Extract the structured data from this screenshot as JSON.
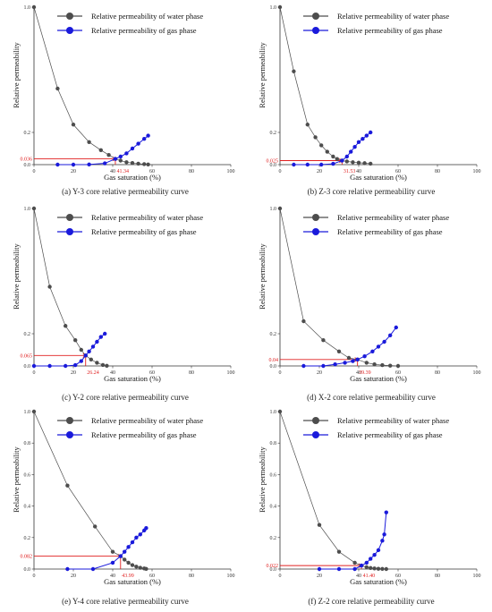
{
  "chart_data": [
    {
      "type": "line",
      "caption": "(a) Y-3 core relative permeability curve",
      "xlabel": "Gas saturation (%)",
      "ylabel": "Relative permeability",
      "xlim": [
        0,
        100
      ],
      "ylim": [
        0,
        1.0
      ],
      "x_ticks": [
        "0",
        "20",
        "40",
        "60",
        "80",
        "100"
      ],
      "y_ticks": [
        "0.0",
        "0.2",
        "1.0"
      ],
      "series": [
        {
          "name": "Relative permeability of water phase",
          "color": "#4d4d4d",
          "x": [
            0,
            12,
            20,
            28,
            34,
            38,
            41.34,
            44,
            47,
            50,
            53,
            56,
            58
          ],
          "y": [
            1.0,
            0.48,
            0.25,
            0.14,
            0.09,
            0.06,
            0.036,
            0.025,
            0.015,
            0.01,
            0.006,
            0.003,
            0.001
          ]
        },
        {
          "name": "Relative permeability of gas phase",
          "color": "#1a1adb",
          "x": [
            12,
            20,
            28,
            36,
            41.34,
            44,
            47,
            50,
            53,
            56,
            58
          ],
          "y": [
            0.0,
            0.0,
            0.001,
            0.008,
            0.036,
            0.05,
            0.07,
            0.1,
            0.13,
            0.16,
            0.18
          ]
        }
      ],
      "crossover": {
        "x": 41.34,
        "y": 0.036,
        "x_label": "41.34",
        "y_label": "0.036"
      },
      "legend": "top-center"
    },
    {
      "type": "line",
      "caption": "(b) Z-3 core relative permeability curve",
      "xlabel": "Gas saturation (%)",
      "ylabel": "Relative permeability",
      "xlim": [
        0,
        100
      ],
      "ylim": [
        0,
        1.0
      ],
      "x_ticks": [
        "0",
        "20",
        "40",
        "60",
        "80",
        "100"
      ],
      "y_ticks": [
        "0.0",
        "0.2",
        "1.0"
      ],
      "series": [
        {
          "name": "Relative permeability of water phase",
          "color": "#4d4d4d",
          "x": [
            0,
            7,
            14,
            18,
            21,
            24,
            27,
            29,
            31.53,
            34,
            37,
            40,
            43,
            46
          ],
          "y": [
            1.0,
            0.59,
            0.25,
            0.17,
            0.12,
            0.08,
            0.05,
            0.035,
            0.025,
            0.02,
            0.015,
            0.012,
            0.009,
            0.006
          ]
        },
        {
          "name": "Relative permeability of gas phase",
          "color": "#1a1adb",
          "x": [
            7,
            14,
            21,
            27,
            31.53,
            34,
            36,
            38,
            40,
            42,
            44,
            46
          ],
          "y": [
            0.0,
            0.0,
            0.0,
            0.005,
            0.025,
            0.05,
            0.08,
            0.11,
            0.14,
            0.16,
            0.18,
            0.2
          ]
        }
      ],
      "crossover": {
        "x": 31.53,
        "y": 0.025,
        "x_label": "31.53",
        "y_label": "0.025"
      },
      "legend": "top-center"
    },
    {
      "type": "line",
      "caption": "(c) Y-2 core relative permeability curve",
      "xlabel": "Gas saturation (%)",
      "ylabel": "Relative permeability",
      "xlim": [
        0,
        100
      ],
      "ylim": [
        0,
        1.0
      ],
      "x_ticks": [
        "0",
        "20",
        "40",
        "60",
        "80",
        "100"
      ],
      "y_ticks": [
        "0.0",
        "0.2",
        "1.0"
      ],
      "series": [
        {
          "name": "Relative permeability of water phase",
          "color": "#4d4d4d",
          "x": [
            0,
            8,
            16,
            21,
            24,
            26.24,
            29,
            32,
            35,
            37
          ],
          "y": [
            1.0,
            0.5,
            0.25,
            0.16,
            0.1,
            0.065,
            0.04,
            0.02,
            0.006,
            0.001
          ]
        },
        {
          "name": "Relative permeability of gas phase",
          "color": "#1a1adb",
          "x": [
            0,
            8,
            16,
            21,
            24,
            26.24,
            28,
            30,
            32,
            34,
            36
          ],
          "y": [
            0.0,
            0.0,
            0.0,
            0.005,
            0.03,
            0.065,
            0.09,
            0.12,
            0.15,
            0.18,
            0.2
          ]
        }
      ],
      "crossover": {
        "x": 26.24,
        "y": 0.065,
        "x_label": "26.24",
        "y_label": "0.065"
      },
      "legend": "top-center"
    },
    {
      "type": "line",
      "caption": "(d) X-2 core relative permeability curve",
      "xlabel": "Gas saturation (%)",
      "ylabel": "Relative permeability",
      "xlim": [
        0,
        100
      ],
      "ylim": [
        0,
        1.0
      ],
      "x_ticks": [
        "0",
        "20",
        "40",
        "60",
        "80",
        "100"
      ],
      "y_ticks": [
        "0.0",
        "0.2",
        "1.0"
      ],
      "series": [
        {
          "name": "Relative permeability of water phase",
          "color": "#4d4d4d",
          "x": [
            0,
            12,
            22,
            30,
            35,
            39.39,
            44,
            48,
            52,
            56,
            60
          ],
          "y": [
            1.0,
            0.28,
            0.16,
            0.09,
            0.05,
            0.04,
            0.02,
            0.01,
            0.005,
            0.002,
            0.0
          ]
        },
        {
          "name": "Relative permeability of gas phase",
          "color": "#1a1adb",
          "x": [
            12,
            22,
            28,
            33,
            37,
            39.39,
            43,
            47,
            50,
            53,
            56,
            59
          ],
          "y": [
            0.0,
            0.0,
            0.01,
            0.02,
            0.03,
            0.04,
            0.06,
            0.09,
            0.12,
            0.15,
            0.19,
            0.24
          ]
        }
      ],
      "crossover": {
        "x": 39.39,
        "y": 0.04,
        "x_label": "39.39",
        "y_label": "0.04"
      },
      "legend": "top-center"
    },
    {
      "type": "line",
      "caption": "(e) Y-4 core relative permeability curve",
      "xlabel": "Gas saturation (%)",
      "ylabel": "Relative permeability",
      "xlim": [
        0,
        100
      ],
      "ylim": [
        0,
        1.0
      ],
      "x_ticks": [
        "0",
        "20",
        "40",
        "60",
        "80",
        "100"
      ],
      "y_ticks": [
        "0.0",
        "0.2",
        "0.4",
        "0.6",
        "0.8",
        "1.0"
      ],
      "series": [
        {
          "name": "Relative permeability of water phase",
          "color": "#4d4d4d",
          "x": [
            0,
            17,
            31,
            40,
            43.99,
            46,
            48,
            50,
            52,
            54,
            56,
            57
          ],
          "y": [
            1.0,
            0.53,
            0.27,
            0.11,
            0.082,
            0.06,
            0.04,
            0.025,
            0.015,
            0.008,
            0.004,
            0.001
          ]
        },
        {
          "name": "Relative permeability of gas phase",
          "color": "#1a1adb",
          "x": [
            17,
            30,
            40,
            43.99,
            46,
            48,
            50,
            52,
            54,
            56,
            57
          ],
          "y": [
            0.0,
            0.0,
            0.04,
            0.082,
            0.11,
            0.14,
            0.17,
            0.2,
            0.22,
            0.245,
            0.26
          ]
        }
      ],
      "crossover": {
        "x": 43.99,
        "y": 0.082,
        "x_label": "43.99",
        "y_label": "0.082"
      },
      "legend": "top-center"
    },
    {
      "type": "line",
      "caption": "(f) Z-2 core relative permeability curve",
      "xlabel": "Gas saturation (%)",
      "ylabel": "Relative permeability",
      "xlim": [
        0,
        100
      ],
      "ylim": [
        0,
        1.0
      ],
      "x_ticks": [
        "0",
        "20",
        "40",
        "60",
        "80",
        "100"
      ],
      "y_ticks": [
        "0.0",
        "0.2",
        "0.4",
        "0.6",
        "0.8",
        "1.0"
      ],
      "series": [
        {
          "name": "Relative permeability of water phase",
          "color": "#4d4d4d",
          "x": [
            0,
            20,
            30,
            38,
            41.4,
            44,
            46,
            48,
            50,
            52,
            54
          ],
          "y": [
            1.0,
            0.28,
            0.11,
            0.04,
            0.022,
            0.012,
            0.007,
            0.004,
            0.002,
            0.001,
            0.0
          ]
        },
        {
          "name": "Relative permeability of gas phase",
          "color": "#1a1adb",
          "x": [
            20,
            30,
            38,
            41.4,
            44,
            46,
            48,
            50,
            52,
            53,
            54
          ],
          "y": [
            0.0,
            0.0,
            0.0,
            0.022,
            0.04,
            0.065,
            0.09,
            0.12,
            0.18,
            0.22,
            0.36
          ]
        }
      ],
      "crossover": {
        "x": 41.4,
        "y": 0.022,
        "x_label": "41.40",
        "y_label": "0.022"
      },
      "legend": "top-center"
    }
  ]
}
